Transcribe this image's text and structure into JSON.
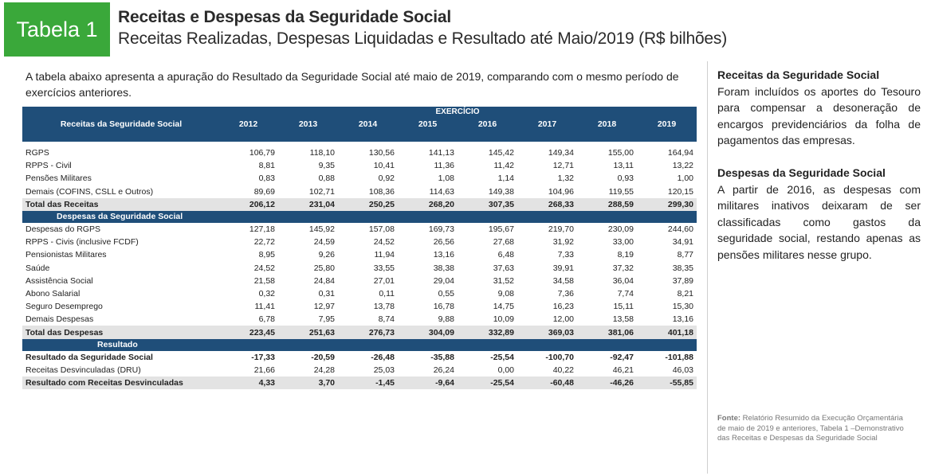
{
  "header": {
    "badge": "Tabela 1",
    "title": "Receitas e Despesas da Seguridade Social",
    "subtitle": "Receitas Realizadas, Despesas Liquidadas e Resultado até Maio/2019 (R$ bilhões)"
  },
  "intro": "A tabela abaixo apresenta a apuração do Resultado da Seguridade Social até maio de 2019, comparando com o mesmo período de exercícios anteriores.",
  "table": {
    "header_label": "Receitas da Seguridade Social",
    "exercise_label": "EXERCÍCIO",
    "years": [
      "2012",
      "2013",
      "2014",
      "2015",
      "2016",
      "2017",
      "2018",
      "2019"
    ],
    "receitas": [
      {
        "label": "RGPS",
        "values": [
          "106,79",
          "118,10",
          "130,56",
          "141,13",
          "145,42",
          "149,34",
          "155,00",
          "164,94"
        ]
      },
      {
        "label": "RPPS - Civil",
        "values": [
          "8,81",
          "9,35",
          "10,41",
          "11,36",
          "11,42",
          "12,71",
          "13,11",
          "13,22"
        ]
      },
      {
        "label": "Pensões Militares",
        "values": [
          "0,83",
          "0,88",
          "0,92",
          "1,08",
          "1,14",
          "1,32",
          "0,93",
          "1,00"
        ]
      },
      {
        "label": "Demais (COFINS, CSLL e Outros)",
        "values": [
          "89,69",
          "102,71",
          "108,36",
          "114,63",
          "149,38",
          "104,96",
          "119,55",
          "120,15"
        ]
      }
    ],
    "total_receitas": {
      "label": "Total das Receitas",
      "values": [
        "206,12",
        "231,04",
        "250,25",
        "268,20",
        "307,35",
        "268,33",
        "288,59",
        "299,30"
      ]
    },
    "despesas_header": "Despesas da Seguridade Social",
    "despesas": [
      {
        "label": "Despesas do RGPS",
        "values": [
          "127,18",
          "145,92",
          "157,08",
          "169,73",
          "195,67",
          "219,70",
          "230,09",
          "244,60"
        ]
      },
      {
        "label": "RPPS - Civis (inclusive FCDF)",
        "values": [
          "22,72",
          "24,59",
          "24,52",
          "26,56",
          "27,68",
          "31,92",
          "33,00",
          "34,91"
        ]
      },
      {
        "label": "Pensionistas Militares",
        "values": [
          "8,95",
          "9,26",
          "11,94",
          "13,16",
          "6,48",
          "7,33",
          "8,19",
          "8,77"
        ]
      },
      {
        "label": "Saúde",
        "values": [
          "24,52",
          "25,80",
          "33,55",
          "38,38",
          "37,63",
          "39,91",
          "37,32",
          "38,35"
        ]
      },
      {
        "label": "Assistência Social",
        "values": [
          "21,58",
          "24,84",
          "27,01",
          "29,04",
          "31,52",
          "34,58",
          "36,04",
          "37,89"
        ]
      },
      {
        "label": "Abono Salarial",
        "values": [
          "0,32",
          "0,31",
          "0,11",
          "0,55",
          "9,08",
          "7,36",
          "7,74",
          "8,21"
        ]
      },
      {
        "label": "Seguro Desemprego",
        "values": [
          "11,41",
          "12,97",
          "13,78",
          "16,78",
          "14,75",
          "16,23",
          "15,11",
          "15,30"
        ]
      },
      {
        "label": "Demais Despesas",
        "values": [
          "6,78",
          "7,95",
          "8,74",
          "9,88",
          "10,09",
          "12,00",
          "13,58",
          "13,16"
        ]
      }
    ],
    "total_despesas": {
      "label": "Total das Despesas",
      "values": [
        "223,45",
        "251,63",
        "276,73",
        "304,09",
        "332,89",
        "369,03",
        "381,06",
        "401,18"
      ]
    },
    "resultado_header": "Resultado",
    "resultado": [
      {
        "label": "Resultado da Seguridade Social",
        "bold": true,
        "values": [
          "-17,33",
          "-20,59",
          "-26,48",
          "-35,88",
          "-25,54",
          "-100,70",
          "-92,47",
          "-101,88"
        ]
      },
      {
        "label": "Receitas Desvinculadas (DRU)",
        "bold": false,
        "values": [
          "21,66",
          "24,28",
          "25,03",
          "26,24",
          "0,00",
          "40,22",
          "46,21",
          "46,03"
        ]
      },
      {
        "label": "Resultado com Receitas Desvinculadas",
        "bold": true,
        "values": [
          "4,33",
          "3,70",
          "-1,45",
          "-9,64",
          "-25,54",
          "-60,48",
          "-46,26",
          "-55,85"
        ]
      }
    ]
  },
  "sidebar": {
    "receitas_title": "Receitas da Seguridade Social",
    "receitas_text": "Foram incluídos os aportes do Tesouro para compensar a desoneração de encargos previdenciários da folha de pagamentos das empresas.",
    "despesas_title": "Despesas da Seguridade Social",
    "despesas_text": "A partir de 2016, as despesas com militares inativos deixaram de ser classificadas como gastos da seguridade social, restando apenas as pensões militares nesse grupo.",
    "source_label": "Fonte:",
    "source_text": "Relatório Resumido da Execução Orçamentária de maio de 2019 e anteriores, Tabela 1 –Demonstrativo das Receitas e Despesas da Seguridade Social"
  }
}
